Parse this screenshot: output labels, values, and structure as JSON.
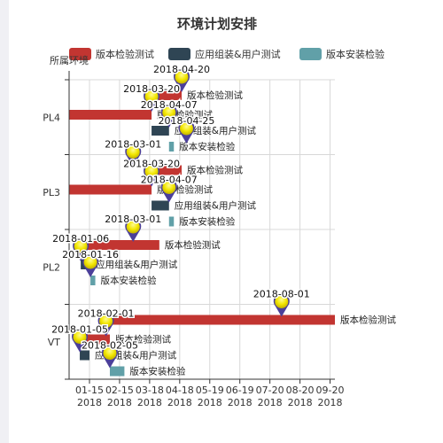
{
  "chart_data": {
    "type": "bar",
    "title": "环境计划安排",
    "ylabel": "所属环境",
    "xlabel": "",
    "legend": {
      "placement": "top",
      "items": [
        {
          "name": "版本检验测试",
          "color": "#c23531"
        },
        {
          "name": "应用组装&用户测试",
          "color": "#2f4554"
        },
        {
          "name": "版本安装检验",
          "color": "#61a0a8"
        }
      ]
    },
    "xlim": [
      "2017-12-25",
      "2018-09-25"
    ],
    "x_ticks": [
      {
        "date": "2018-01-15",
        "label": [
          "01-15",
          "2018"
        ]
      },
      {
        "date": "2018-02-15",
        "label": [
          "02-15",
          "2018"
        ]
      },
      {
        "date": "2018-03-18",
        "label": [
          "03-18",
          "2018"
        ]
      },
      {
        "date": "2018-04-18",
        "label": [
          "04-18",
          "2018"
        ]
      },
      {
        "date": "2018-05-19",
        "label": [
          "05-19",
          "2018"
        ]
      },
      {
        "date": "2018-06-19",
        "label": [
          "06-19",
          "2018"
        ]
      },
      {
        "date": "2018-07-20",
        "label": [
          "07-20",
          "2018"
        ]
      },
      {
        "date": "2018-08-20",
        "label": [
          "08-20",
          "2018"
        ]
      },
      {
        "date": "2018-09-20",
        "label": [
          "09-20",
          "2018"
        ]
      }
    ],
    "grid": true,
    "categories": [
      "PL4",
      "PL3",
      "PL2",
      "VT"
    ],
    "tasks": [
      {
        "category": "PL4",
        "series": "版本检验测试",
        "start": "2018-03-18",
        "end": "2018-04-20",
        "label": "版本检验测试",
        "pin": "2018-04-20"
      },
      {
        "category": "PL4",
        "series": "版本检验测试",
        "start": "2017-12-25",
        "end": "2018-03-20",
        "label": "版本检验测试",
        "pin": "2018-03-20"
      },
      {
        "category": "PL4",
        "series": "应用组装&用户测试",
        "start": "2018-03-20",
        "end": "2018-04-07",
        "label": "应用组装&用户测试",
        "pin": "2018-04-07"
      },
      {
        "category": "PL4",
        "series": "版本安装检验",
        "start": "2018-04-07",
        "end": "2018-04-12",
        "label": "版本安装检验",
        "pin": "2018-04-25"
      },
      {
        "category": "PL3",
        "series": "版本检验测试",
        "start": "2018-03-18",
        "end": "2018-04-20",
        "label": "版本检验测试",
        "pin": "2018-03-01"
      },
      {
        "category": "PL3",
        "series": "版本检验测试",
        "start": "2017-12-25",
        "end": "2018-03-20",
        "label": "版本检验测试",
        "pin": "2018-03-20"
      },
      {
        "category": "PL3",
        "series": "应用组装&用户测试",
        "start": "2018-03-20",
        "end": "2018-04-07",
        "label": "应用组装&用户测试",
        "pin": "2018-04-07"
      },
      {
        "category": "PL3",
        "series": "版本安装检验",
        "start": "2018-04-07",
        "end": "2018-04-12",
        "label": "版本安装检验",
        "pin": ""
      },
      {
        "category": "PL2",
        "series": "版本检验测试",
        "start": "2018-01-06",
        "end": "2018-03-28",
        "label": "版本检验测试",
        "pin": "2018-03-01"
      },
      {
        "category": "PL2",
        "series": "应用组装&用户测试",
        "start": "2018-01-06",
        "end": "2018-01-16",
        "label": "应用组装&用户测试",
        "pin": "2018-01-06"
      },
      {
        "category": "PL2",
        "series": "版本安装检验",
        "start": "2018-01-16",
        "end": "2018-01-21",
        "label": "版本安装检验",
        "pin": "2018-01-16"
      },
      {
        "category": "VT",
        "series": "版本检验测试",
        "start": "2018-02-01",
        "end": "2018-09-25",
        "label": "版本检验测试",
        "pin": "2018-08-01"
      },
      {
        "category": "VT",
        "series": "版本检验测试",
        "start": "2018-01-05",
        "end": "2018-02-05",
        "label": "版本检验测试",
        "pin": "2018-02-01"
      },
      {
        "category": "VT",
        "series": "应用组装&用户测试",
        "start": "2018-01-05",
        "end": "2018-01-15",
        "label": "应用组装&用户测试",
        "pin": "2018-01-05"
      },
      {
        "category": "VT",
        "series": "版本安装检验",
        "start": "2018-02-05",
        "end": "2018-02-20",
        "label": "版本安装检验",
        "pin": "2018-02-05"
      }
    ]
  }
}
